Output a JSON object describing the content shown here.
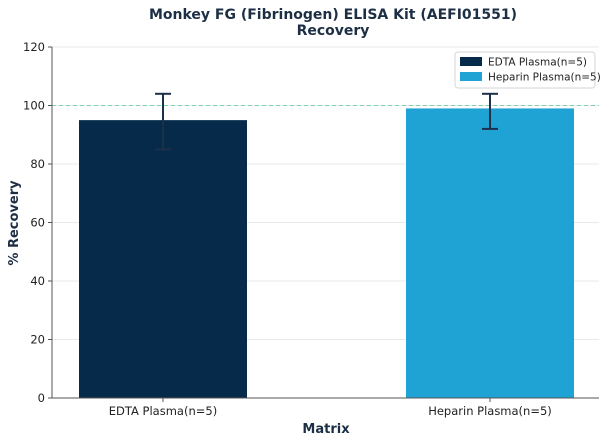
{
  "chart_data": {
    "type": "bar",
    "title": "Monkey FG (Fibrinogen) ELISA Kit (AEFI01551)",
    "subtitle": "Recovery",
    "xlabel": "Matrix",
    "ylabel": "% Recovery",
    "categories": [
      "EDTA Plasma(n=5)",
      "Heparin Plasma(n=5)"
    ],
    "values": [
      95,
      99
    ],
    "error_low": [
      85,
      92
    ],
    "error_high": [
      104,
      104
    ],
    "colors": [
      "#062b4a",
      "#1fa3d4"
    ],
    "ylim": [
      0,
      120
    ],
    "yticks": [
      0,
      20,
      40,
      60,
      80,
      100,
      120
    ],
    "reference_line": 100,
    "reference_color": "#7fcfb3",
    "grid": true,
    "legend": {
      "position": "top-right",
      "entries": [
        "EDTA Plasma(n=5)",
        "Heparin Plasma(n=5)"
      ]
    }
  }
}
